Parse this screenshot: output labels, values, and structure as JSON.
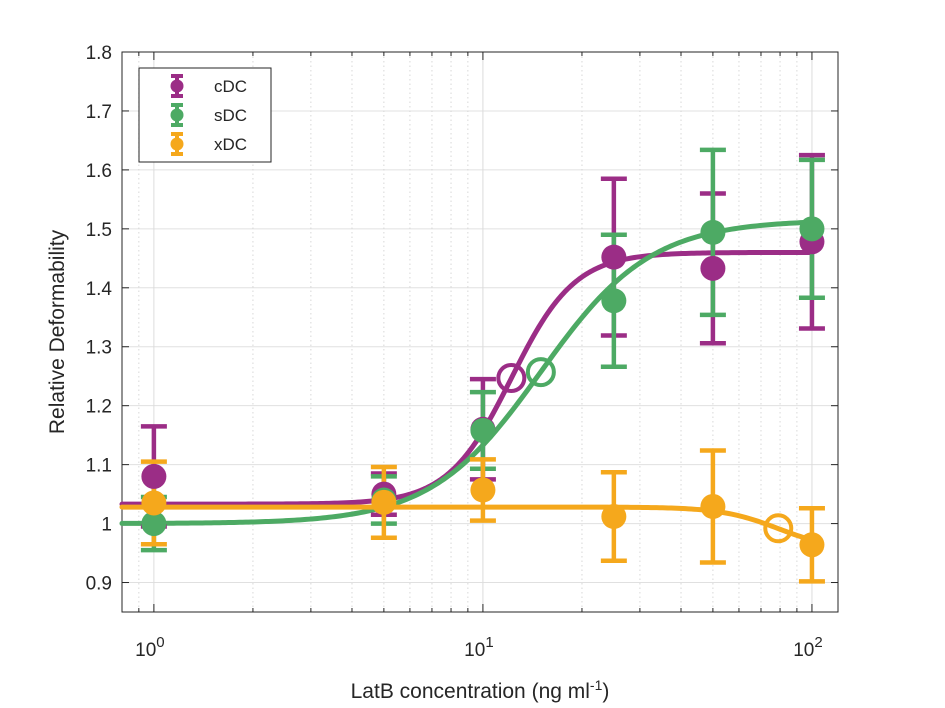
{
  "chart_data": {
    "type": "scatter",
    "xscale": "log",
    "xlim": [
      0.8,
      120
    ],
    "ylim": [
      0.85,
      1.8
    ],
    "xlabel": "LatB concentration (ng ml",
    "xlabel_superscript": "-1",
    "xlabel_close": ")",
    "ylabel": "Relative Deformability",
    "xticks": [
      {
        "value": 1,
        "base": "10",
        "exp": "0"
      },
      {
        "value": 10,
        "base": "10",
        "exp": "1"
      },
      {
        "value": 100,
        "base": "10",
        "exp": "2"
      }
    ],
    "yticks": [
      0.9,
      1,
      1.1,
      1.2,
      1.3,
      1.4,
      1.5,
      1.6,
      1.7,
      1.8
    ],
    "ytick_labels": [
      "0.9",
      "1",
      "1.1",
      "1.2",
      "1.3",
      "1.4",
      "1.5",
      "1.6",
      "1.7",
      "1.8"
    ],
    "grid": true,
    "legend_position": "top-left",
    "series": [
      {
        "name": "cDC",
        "color": "#9b2d86",
        "x": [
          1,
          5,
          10,
          25,
          50,
          100
        ],
        "y": [
          1.08,
          1.05,
          1.16,
          1.452,
          1.433,
          1.478
        ],
        "err": [
          0.085,
          0.035,
          0.085,
          0.133,
          0.127,
          0.147
        ],
        "fit": {
          "bottom": 1.033,
          "top": 1.46,
          "ec50": 12.2,
          "hill": 4.5
        },
        "ec50_marker": {
          "x": 12.2,
          "y": 1.247
        }
      },
      {
        "name": "sDC",
        "color": "#4daa64",
        "x": [
          1,
          5,
          10,
          25,
          50,
          100
        ],
        "y": [
          1.0,
          1.04,
          1.158,
          1.378,
          1.494,
          1.5
        ],
        "err": [
          0.045,
          0.04,
          0.065,
          0.112,
          0.14,
          0.117
        ],
        "fit": {
          "bottom": 1.0,
          "top": 1.515,
          "ec50": 15.0,
          "hill": 2.6
        },
        "ec50_marker": {
          "x": 15.0,
          "y": 1.257
        }
      },
      {
        "name": "xDC",
        "color": "#f5a81c",
        "x": [
          1,
          5,
          10,
          25,
          50,
          100
        ],
        "y": [
          1.035,
          1.036,
          1.057,
          1.012,
          1.029,
          0.964
        ],
        "err": [
          0.07,
          0.06,
          0.052,
          0.075,
          0.095,
          0.062
        ],
        "fit": {
          "bottom": 1.028,
          "top": 0.955,
          "ec50": 79,
          "hill": 5
        },
        "ec50_marker": {
          "x": 79,
          "y": 0.992
        }
      }
    ]
  }
}
